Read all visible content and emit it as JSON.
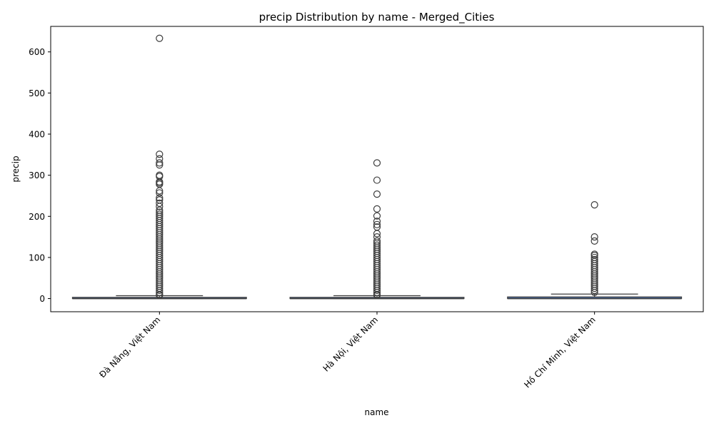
{
  "chart_data": {
    "type": "box",
    "title": "precip Distribution by name - Merged_Cities",
    "xlabel": "name",
    "ylabel": "precip",
    "ylim": [
      -32,
      662
    ],
    "yticks": [
      0,
      100,
      200,
      300,
      400,
      500,
      600
    ],
    "grid": false,
    "legend": "none",
    "colors": {
      "box_edge": "#3d3d3d",
      "box_fill": "#4c72b0",
      "outlier_edge": "#3d3d3d"
    },
    "categories": [
      "Đà Nẵng, Việt Nam",
      "Hà Nội, Việt Nam",
      "Hồ Chí Minh, Việt Nam"
    ],
    "boxes": [
      {
        "q1": 0,
        "median": 0,
        "q3": 3,
        "whisker_low": 0,
        "whisker_high": 7,
        "outliers": [
          633,
          351,
          340,
          330,
          325,
          300,
          297,
          284,
          281,
          278,
          262,
          257,
          245,
          240,
          232,
          224,
          215,
          210,
          205,
          200,
          195,
          190,
          185,
          180,
          175,
          170,
          165,
          160,
          155,
          150,
          145,
          140,
          135,
          130,
          125,
          120,
          115,
          110,
          105,
          100,
          95,
          90,
          85,
          80,
          75,
          70,
          65,
          60,
          55,
          50,
          45,
          40,
          35,
          30,
          25,
          20,
          15,
          10,
          8
        ]
      },
      {
        "q1": 0,
        "median": 0,
        "q3": 3,
        "whisker_low": 0,
        "whisker_high": 7,
        "outliers": [
          330,
          288,
          254,
          218,
          201,
          188,
          180,
          174,
          158,
          150,
          140,
          135,
          130,
          125,
          120,
          115,
          110,
          105,
          100,
          95,
          90,
          85,
          80,
          75,
          70,
          65,
          60,
          55,
          50,
          45,
          40,
          35,
          30,
          25,
          20,
          15,
          10,
          8
        ]
      },
      {
        "q1": 0,
        "median": 0,
        "q3": 4,
        "whisker_low": 0,
        "whisker_high": 11,
        "outliers": [
          228,
          150,
          140,
          108,
          105,
          100,
          95,
          90,
          85,
          80,
          75,
          70,
          65,
          60,
          55,
          50,
          45,
          40,
          35,
          30,
          25,
          20,
          15
        ]
      }
    ]
  }
}
